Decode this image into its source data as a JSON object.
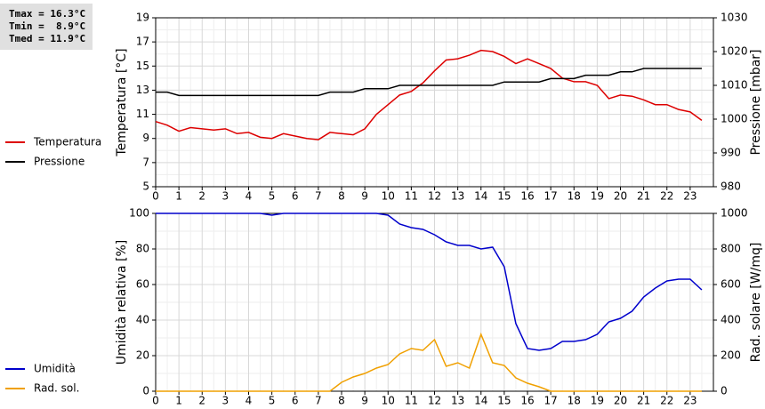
{
  "chart_data": [
    {
      "type": "line",
      "annotations": [
        "Tmax = 16.3°C",
        "Tmin =  8.9°C",
        "Tmed = 11.9°C"
      ],
      "ylabel": "Temperatura [°C]",
      "y2label": "Pressione [mbar]",
      "x": [
        0,
        0.5,
        1,
        1.5,
        2,
        2.5,
        3,
        3.5,
        4,
        4.5,
        5,
        5.5,
        6,
        6.5,
        7,
        7.5,
        8,
        8.5,
        9,
        9.5,
        10,
        10.5,
        11,
        11.5,
        12,
        12.5,
        13,
        13.5,
        14,
        14.5,
        15,
        15.5,
        16,
        16.5,
        17,
        17.5,
        18,
        18.5,
        19,
        19.5,
        20,
        20.5,
        21,
        21.5,
        22,
        22.5,
        23,
        23.5
      ],
      "xlim": [
        0,
        24
      ],
      "xticks": [
        0,
        1,
        2,
        3,
        4,
        5,
        6,
        7,
        8,
        9,
        10,
        11,
        12,
        13,
        14,
        15,
        16,
        17,
        18,
        19,
        20,
        21,
        22,
        23
      ],
      "ylim": [
        5,
        19
      ],
      "yticks": [
        5,
        7,
        9,
        11,
        13,
        15,
        17,
        19
      ],
      "y2lim": [
        980,
        1030
      ],
      "y2ticks": [
        980,
        990,
        1000,
        1010,
        1020,
        1030
      ],
      "grid": true,
      "series": [
        {
          "name": "Temperatura",
          "color": "#dd0000",
          "values": [
            10.4,
            10.1,
            9.6,
            9.9,
            9.8,
            9.7,
            9.8,
            9.4,
            9.5,
            9.1,
            9.0,
            9.4,
            9.2,
            9.0,
            8.9,
            9.5,
            9.4,
            9.3,
            9.8,
            11.0,
            11.8,
            12.6,
            12.9,
            13.6,
            14.6,
            15.5,
            15.6,
            15.9,
            16.3,
            16.2,
            15.8,
            15.2,
            15.6,
            15.2,
            14.8,
            14.0,
            13.7,
            13.7,
            13.4,
            12.3,
            12.6,
            12.5,
            12.2,
            11.8,
            11.8,
            11.4,
            11.2,
            10.5
          ]
        },
        {
          "name": "Pressione",
          "color": "#000000",
          "axis": "y2",
          "values": [
            1008,
            1008,
            1007,
            1007,
            1007,
            1007,
            1007,
            1007,
            1007,
            1007,
            1007,
            1007,
            1007,
            1007,
            1007,
            1008,
            1008,
            1008,
            1009,
            1009,
            1009,
            1010,
            1010,
            1010,
            1010,
            1010,
            1010,
            1010,
            1010,
            1010,
            1011,
            1011,
            1011,
            1011,
            1012,
            1012,
            1012,
            1013,
            1013,
            1013,
            1014,
            1014,
            1015,
            1015,
            1015,
            1015,
            1015,
            1015
          ]
        }
      ]
    },
    {
      "type": "line",
      "ylabel": "Umidità relativa [%]",
      "y2label": "Rad. solare [W/mq]",
      "x": [
        0,
        0.5,
        1,
        1.5,
        2,
        2.5,
        3,
        3.5,
        4,
        4.5,
        5,
        5.5,
        6,
        6.5,
        7,
        7.5,
        8,
        8.5,
        9,
        9.5,
        10,
        10.5,
        11,
        11.5,
        12,
        12.5,
        13,
        13.5,
        14,
        14.5,
        15,
        15.5,
        16,
        16.5,
        17,
        17.5,
        18,
        18.5,
        19,
        19.5,
        20,
        20.5,
        21,
        21.5,
        22,
        22.5,
        23,
        23.5
      ],
      "xlim": [
        0,
        24
      ],
      "xticks": [
        0,
        1,
        2,
        3,
        4,
        5,
        6,
        7,
        8,
        9,
        10,
        11,
        12,
        13,
        14,
        15,
        16,
        17,
        18,
        19,
        20,
        21,
        22,
        23
      ],
      "ylim": [
        0,
        100
      ],
      "yticks": [
        0,
        20,
        40,
        60,
        80,
        100
      ],
      "y2lim": [
        0,
        1000
      ],
      "y2ticks": [
        0,
        200,
        400,
        600,
        800,
        1000
      ],
      "grid": true,
      "series": [
        {
          "name": "Umidità",
          "color": "#0000cc",
          "values": [
            100,
            100,
            100,
            100,
            100,
            100,
            100,
            100,
            100,
            100,
            99,
            100,
            100,
            100,
            100,
            100,
            100,
            100,
            100,
            100,
            99,
            94,
            92,
            91,
            88,
            84,
            82,
            82,
            80,
            81,
            70,
            38,
            24,
            23,
            24,
            28,
            28,
            29,
            32,
            39,
            41,
            45,
            53,
            58,
            62,
            63,
            63,
            57
          ]
        },
        {
          "name": "Rad. sol.",
          "color": "#f0a000",
          "axis": "y2",
          "values": [
            0,
            0,
            0,
            0,
            0,
            0,
            0,
            0,
            0,
            0,
            0,
            0,
            0,
            0,
            0,
            0,
            50,
            80,
            100,
            130,
            150,
            210,
            240,
            230,
            290,
            140,
            160,
            130,
            320,
            160,
            145,
            75,
            45,
            25,
            0,
            0,
            0,
            0,
            0,
            0,
            0,
            0,
            0,
            0,
            0,
            0,
            0,
            0
          ]
        }
      ]
    }
  ]
}
